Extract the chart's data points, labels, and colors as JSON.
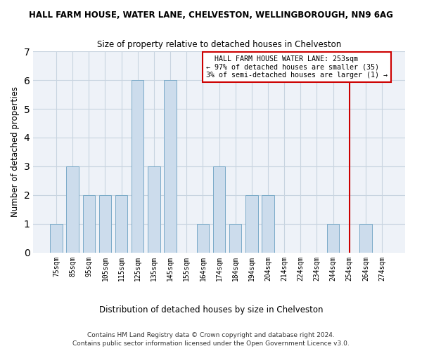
{
  "title": "HALL FARM HOUSE, WATER LANE, CHELVESTON, WELLINGBOROUGH, NN9 6AG",
  "subtitle": "Size of property relative to detached houses in Chelveston",
  "xlabel": "Distribution of detached houses by size in Chelveston",
  "ylabel": "Number of detached properties",
  "bar_color": "#ccdcec",
  "bar_edgecolor": "#7aaac8",
  "grid_color": "#c8d4e0",
  "bg_color": "#eef2f8",
  "categories": [
    "75sqm",
    "85sqm",
    "95sqm",
    "105sqm",
    "115sqm",
    "125sqm",
    "135sqm",
    "145sqm",
    "155sqm",
    "164sqm",
    "174sqm",
    "184sqm",
    "194sqm",
    "204sqm",
    "214sqm",
    "224sqm",
    "234sqm",
    "244sqm",
    "254sqm",
    "264sqm",
    "274sqm"
  ],
  "values": [
    1,
    3,
    2,
    2,
    2,
    6,
    3,
    6,
    0,
    1,
    3,
    1,
    2,
    2,
    0,
    0,
    0,
    1,
    0,
    1,
    0
  ],
  "vline_color": "#cc0000",
  "vline_idx": 18,
  "annotation_text": "  HALL FARM HOUSE WATER LANE: 253sqm\n← 97% of detached houses are smaller (35)\n3% of semi-detached houses are larger (1) →",
  "annotation_box_color": "#ffffff",
  "annotation_box_edgecolor": "#cc0000",
  "footnote1": "Contains HM Land Registry data © Crown copyright and database right 2024.",
  "footnote2": "Contains public sector information licensed under the Open Government Licence v3.0.",
  "ylim": [
    0,
    7
  ],
  "yticks": [
    0,
    1,
    2,
    3,
    4,
    5,
    6,
    7
  ],
  "bar_width": 0.75
}
